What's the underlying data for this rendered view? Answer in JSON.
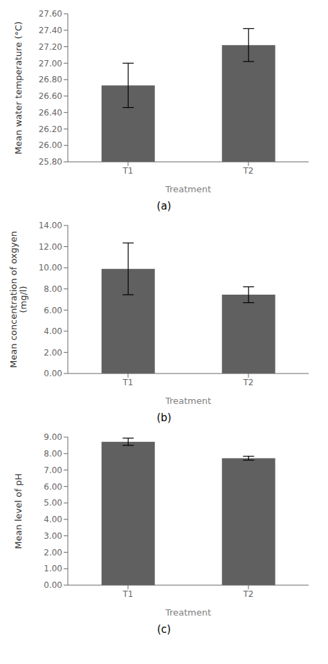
{
  "chart_data": [
    {
      "type": "bar",
      "annotation": "(a)",
      "x_label": "Treatment",
      "y_label": "Mean water temperature (°C)",
      "categories": [
        "T1",
        "T2"
      ],
      "values": [
        26.73,
        27.22
      ],
      "errors": [
        0.27,
        0.2
      ],
      "color": "#606060",
      "ylim": [
        25.8,
        27.6
      ],
      "yticks": [
        {
          "value": 25.8,
          "label": "25.80"
        },
        {
          "value": 26.0,
          "label": "26.00"
        },
        {
          "value": 26.2,
          "label": "26.20"
        },
        {
          "value": 26.4,
          "label": "26.40"
        },
        {
          "value": 26.6,
          "label": "26.60"
        },
        {
          "value": 26.8,
          "label": "26.80"
        },
        {
          "value": 27.0,
          "label": "27.00"
        },
        {
          "value": 27.2,
          "label": "27.20"
        },
        {
          "value": 27.4,
          "label": "27.40"
        },
        {
          "value": 27.6,
          "label": "27.60"
        }
      ],
      "grid": false
    },
    {
      "type": "bar",
      "annotation": "(b)",
      "x_label": "Treatment",
      "y_label": "Mean concentration of oxgyen\n(mg/l)",
      "categories": [
        "T1",
        "T2"
      ],
      "values": [
        9.9,
        7.45
      ],
      "errors": [
        2.45,
        0.75
      ],
      "color": "#606060",
      "ylim": [
        0.0,
        14.0
      ],
      "yticks": [
        {
          "value": 0,
          "label": "0.00"
        },
        {
          "value": 2,
          "label": "2.00"
        },
        {
          "value": 4,
          "label": "4.00"
        },
        {
          "value": 6,
          "label": "6.00"
        },
        {
          "value": 8,
          "label": "8.00"
        },
        {
          "value": 10,
          "label": "10.00"
        },
        {
          "value": 12,
          "label": "12.00"
        },
        {
          "value": 14,
          "label": "14.00"
        }
      ],
      "grid": false
    },
    {
      "type": "bar",
      "annotation": "(c)",
      "x_label": "Treatment",
      "y_label": "Mean level of pH",
      "categories": [
        "T1",
        "T2"
      ],
      "values": [
        8.72,
        7.72
      ],
      "errors": [
        0.22,
        0.12
      ],
      "color": "#606060",
      "ylim": [
        0.0,
        9.0
      ],
      "yticks": [
        {
          "value": 0,
          "label": "0.00"
        },
        {
          "value": 1,
          "label": "1.00"
        },
        {
          "value": 2,
          "label": "2.00"
        },
        {
          "value": 3,
          "label": "3.00"
        },
        {
          "value": 4,
          "label": "4.00"
        },
        {
          "value": 5,
          "label": "5.00"
        },
        {
          "value": 6,
          "label": "6.00"
        },
        {
          "value": 7,
          "label": "7.00"
        },
        {
          "value": 8,
          "label": "8.00"
        },
        {
          "value": 9,
          "label": "9.00"
        }
      ],
      "grid": false
    }
  ]
}
